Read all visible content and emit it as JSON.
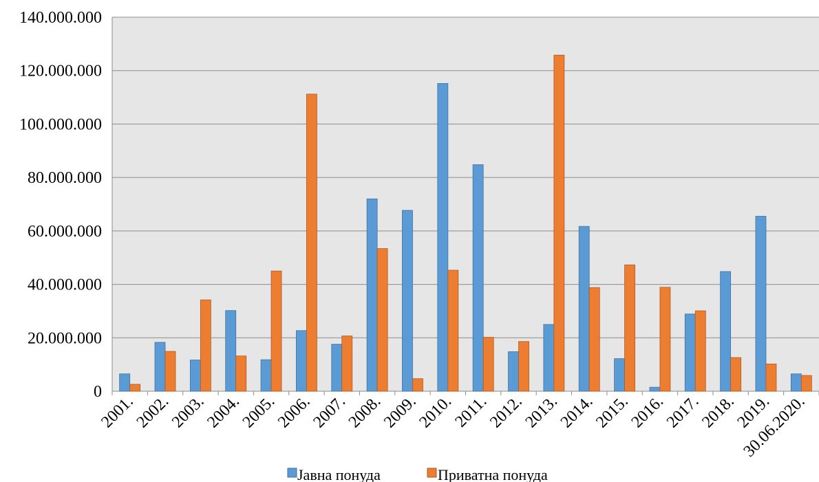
{
  "chart_data": {
    "type": "bar",
    "categories": [
      "2001.",
      "2002.",
      "2003.",
      "2004.",
      "2005.",
      "2006.",
      "2007.",
      "2008.",
      "2009.",
      "2010.",
      "2011.",
      "2012.",
      "2013.",
      "2014.",
      "2015.",
      "2016.",
      "2017.",
      "2018.",
      "2019.",
      "30.06.2020."
    ],
    "series": [
      {
        "name": "Јавна понуда",
        "color": "#5B9BD5",
        "values": [
          6500000,
          18300000,
          11700000,
          30200000,
          11800000,
          22700000,
          17600000,
          72000000,
          67700000,
          115200000,
          84800000,
          14800000,
          25000000,
          61700000,
          12200000,
          1500000,
          28900000,
          44800000,
          65500000,
          6500000
        ]
      },
      {
        "name": "Приватна понуда",
        "color": "#ED7D31",
        "values": [
          2600000,
          14900000,
          34200000,
          13200000,
          45000000,
          111200000,
          20700000,
          53400000,
          4700000,
          45300000,
          20200000,
          18600000,
          125800000,
          38800000,
          47300000,
          38900000,
          30100000,
          12600000,
          10200000,
          5900000
        ]
      }
    ],
    "y_ticks": [
      "0",
      "20.000.000",
      "40.000.000",
      "60.000.000",
      "80.000.000",
      "100.000.000",
      "120.000.000",
      "140.000.000"
    ],
    "ylim": [
      0,
      140000000
    ],
    "grid": true,
    "legend_position": "bottom",
    "colors": {
      "plot_background": "#E6E6E6",
      "gridline": "#8C8C8C",
      "bar_outline_blue": "#41719C",
      "bar_outline_orange": "#AE5A21"
    }
  }
}
